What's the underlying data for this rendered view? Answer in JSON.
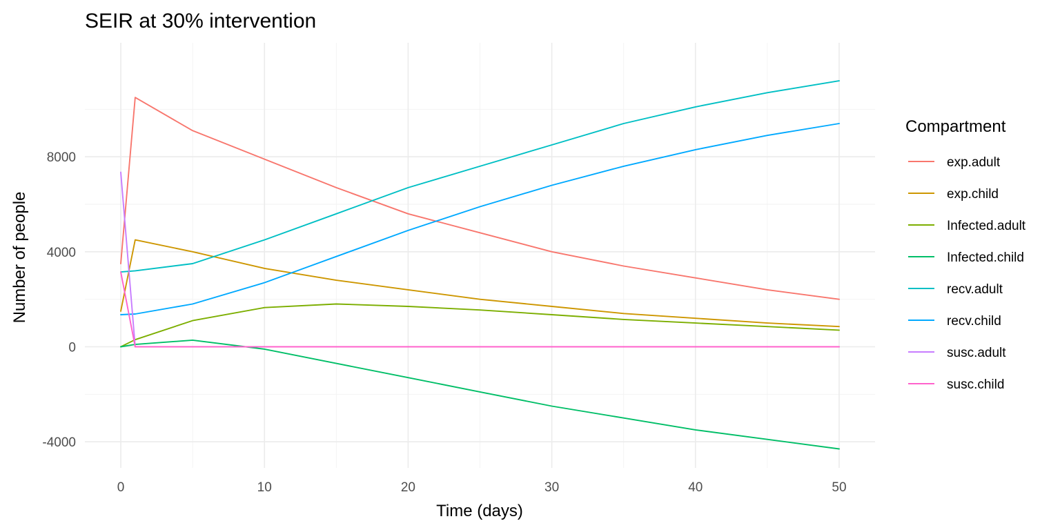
{
  "chart_data": {
    "type": "line",
    "title": "SEIR at 30% intervention",
    "xlabel": "Time (days)",
    "ylabel": "Number of people",
    "xlim": [
      -2.5,
      52.5
    ],
    "ylim": [
      -5100,
      12800
    ],
    "x_ticks": [
      0,
      10,
      20,
      30,
      40,
      50
    ],
    "y_ticks": [
      -4000,
      0,
      4000,
      8000
    ],
    "grid": true,
    "legend": {
      "title": "Compartment",
      "position": "right"
    },
    "x": [
      0,
      1,
      5,
      10,
      15,
      20,
      25,
      30,
      35,
      40,
      45,
      50
    ],
    "series": [
      {
        "name": "exp.adult",
        "color": "#F8766D",
        "values": [
          3500,
          10500,
          9100,
          7900,
          6700,
          5600,
          4800,
          4000,
          3400,
          2900,
          2400,
          2000
        ]
      },
      {
        "name": "exp.child",
        "color": "#CD9600",
        "values": [
          1500,
          4500,
          4000,
          3300,
          2800,
          2400,
          2000,
          1700,
          1400,
          1200,
          1000,
          850
        ]
      },
      {
        "name": "Infected.adult",
        "color": "#7CAE00",
        "values": [
          0,
          300,
          1100,
          1650,
          1800,
          1700,
          1550,
          1350,
          1150,
          1000,
          850,
          700
        ]
      },
      {
        "name": "Infected.child",
        "color": "#00BE67",
        "values": [
          0,
          100,
          280,
          -100,
          -700,
          -1300,
          -1900,
          -2500,
          -3000,
          -3500,
          -3900,
          -4300
        ]
      },
      {
        "name": "recv.adult",
        "color": "#00BFC4",
        "values": [
          3150,
          3200,
          3500,
          4500,
          5600,
          6700,
          7600,
          8500,
          9400,
          10100,
          10700,
          11200
        ]
      },
      {
        "name": "recv.child",
        "color": "#00A9FF",
        "values": [
          1350,
          1380,
          1800,
          2700,
          3800,
          4900,
          5900,
          6800,
          7600,
          8300,
          8900,
          9400
        ]
      },
      {
        "name": "susc.adult",
        "color": "#C77CFF",
        "values": [
          7350,
          0,
          0,
          0,
          0,
          0,
          0,
          0,
          0,
          0,
          0,
          0
        ]
      },
      {
        "name": "susc.child",
        "color": "#FF61CC",
        "values": [
          3150,
          0,
          0,
          0,
          0,
          0,
          0,
          0,
          0,
          0,
          0,
          0
        ]
      }
    ]
  }
}
